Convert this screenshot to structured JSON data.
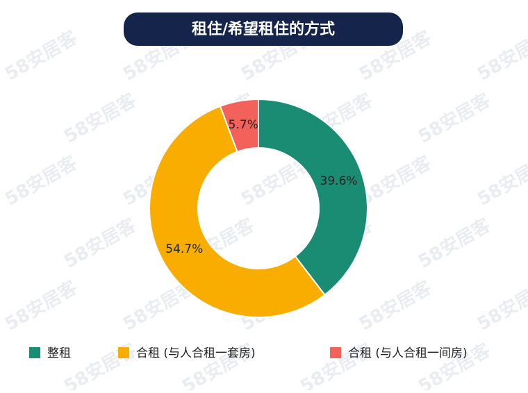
{
  "chart_data": {
    "type": "pie",
    "title": "租住/希望租住的方式",
    "watermark": "58安居客",
    "categories": [
      "整租",
      "合租 (与人合租一套房)",
      "合租 (与人合租一间房)"
    ],
    "values": [
      39.6,
      54.7,
      5.7
    ],
    "value_labels": [
      "39.6%",
      "54.7%",
      "5.7%"
    ],
    "colors": [
      "#1a8c73",
      "#f8ad00",
      "#f2615a"
    ],
    "donut": true,
    "legend": "bottom"
  }
}
